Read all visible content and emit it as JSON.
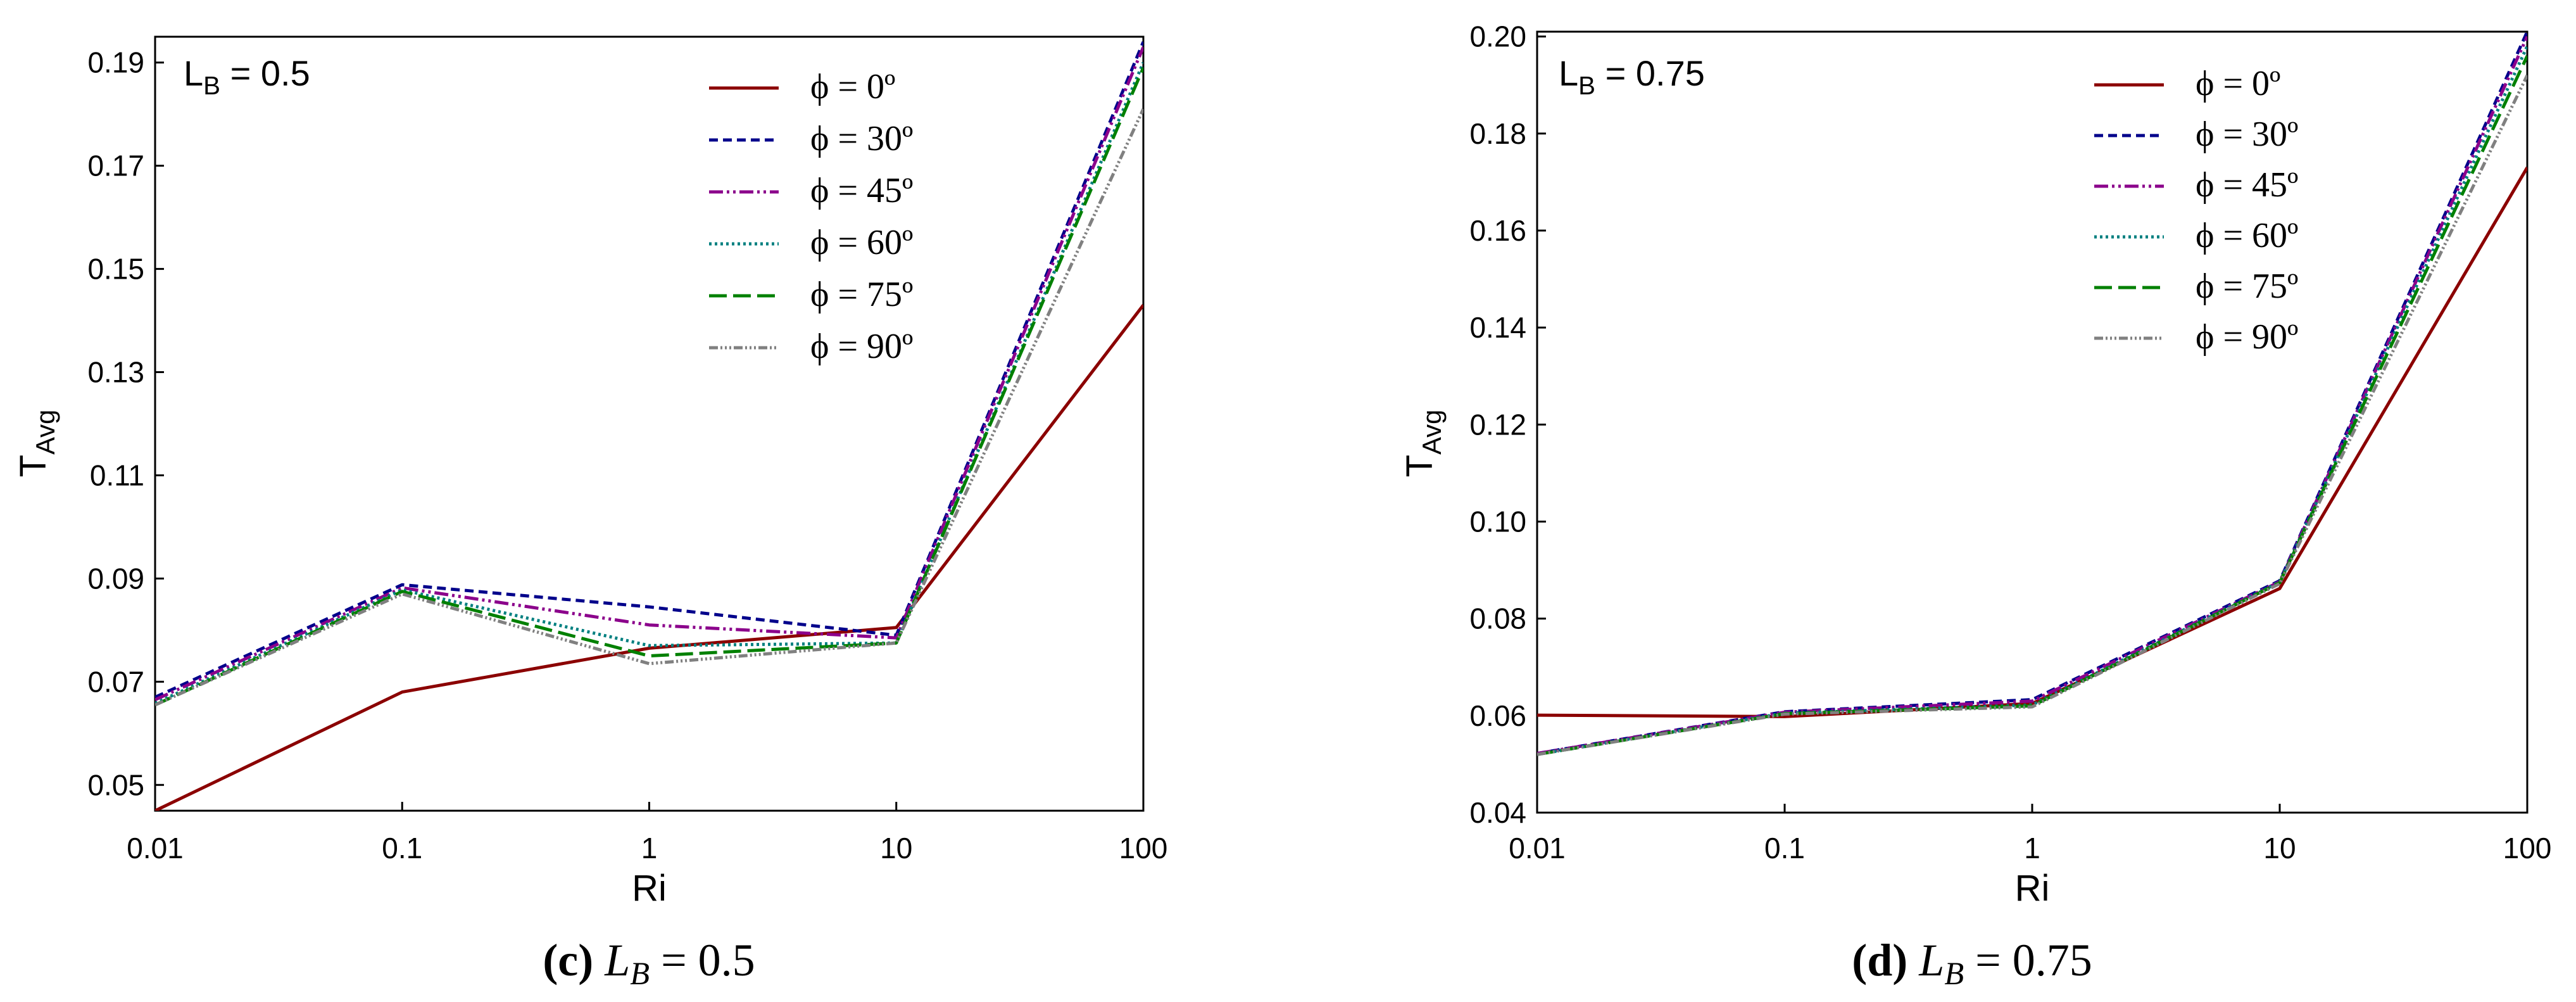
{
  "chart_data": [
    {
      "type": "line",
      "panel_annotation": {
        "main": "L",
        "sub": "B",
        "rest": " = 0.5"
      },
      "caption": {
        "tag": "(c)",
        "L": "L",
        "sub": "B",
        "rest": " = 0.5"
      },
      "xlabel": "Ri",
      "ylabel": {
        "main": "T",
        "sub": "Avg"
      },
      "xscale": "log",
      "x": [
        0.01,
        0.1,
        1,
        10,
        100
      ],
      "x_tick_labels": [
        "0.01",
        "0.1",
        "1",
        "10",
        "100"
      ],
      "xlim": [
        0.01,
        100
      ],
      "ylim": [
        0.045,
        0.195
      ],
      "y_ticks": [
        0.05,
        0.07,
        0.09,
        0.11,
        0.13,
        0.15,
        0.17,
        0.19
      ],
      "y_tick_labels": [
        "0.05",
        "0.07",
        "0.09",
        "0.11",
        "0.13",
        "0.15",
        "0.17",
        "0.19"
      ],
      "legend_position": "top-right",
      "series": [
        {
          "name": "ϕ = 0º",
          "values": [
            0.045,
            0.068,
            0.0765,
            0.0805,
            0.143
          ]
        },
        {
          "name": "ϕ = 30º",
          "values": [
            0.067,
            0.0888,
            0.0845,
            0.079,
            0.194
          ]
        },
        {
          "name": "ϕ = 45º",
          "values": [
            0.0665,
            0.0882,
            0.081,
            0.0785,
            0.193
          ]
        },
        {
          "name": "ϕ = 60º",
          "values": [
            0.0658,
            0.0878,
            0.077,
            0.0775,
            0.19
          ]
        },
        {
          "name": "ϕ = 75º",
          "values": [
            0.0655,
            0.0875,
            0.075,
            0.0775,
            0.189
          ]
        },
        {
          "name": "ϕ = 90º",
          "values": [
            0.0655,
            0.087,
            0.0735,
            0.0775,
            0.181
          ]
        }
      ]
    },
    {
      "type": "line",
      "panel_annotation": {
        "main": "L",
        "sub": "B",
        "rest": " = 0.75"
      },
      "caption": {
        "tag": "(d)",
        "L": "L",
        "sub": "B",
        "rest": " = 0.75"
      },
      "xlabel": "Ri",
      "ylabel": {
        "main": "T",
        "sub": "Avg"
      },
      "xscale": "log",
      "x": [
        0.01,
        0.1,
        1,
        10,
        100
      ],
      "x_tick_labels": [
        "0.01",
        "0.1",
        "1",
        "10",
        "100"
      ],
      "xlim": [
        0.01,
        100
      ],
      "ylim": [
        0.04,
        0.201
      ],
      "y_ticks": [
        0.04,
        0.06,
        0.08,
        0.1,
        0.12,
        0.14,
        0.16,
        0.18,
        0.2
      ],
      "y_tick_labels": [
        "0.04",
        "0.06",
        "0.08",
        "0.10",
        "0.12",
        "0.14",
        "0.16",
        "0.18",
        "0.20"
      ],
      "legend_position": "top-right",
      "series": [
        {
          "name": "ϕ = 0º",
          "values": [
            0.0601,
            0.0598,
            0.0625,
            0.0862,
            0.173
          ]
        },
        {
          "name": "ϕ = 30º",
          "values": [
            0.0522,
            0.0608,
            0.0633,
            0.0878,
            0.201
          ]
        },
        {
          "name": "ϕ = 45º",
          "values": [
            0.0522,
            0.0607,
            0.063,
            0.0876,
            0.2
          ]
        },
        {
          "name": "ϕ = 60º",
          "values": [
            0.052,
            0.0605,
            0.0622,
            0.0875,
            0.198
          ]
        },
        {
          "name": "ϕ = 75º",
          "values": [
            0.052,
            0.0604,
            0.062,
            0.0874,
            0.196
          ]
        },
        {
          "name": "ϕ = 90º",
          "values": [
            0.052,
            0.0603,
            0.0618,
            0.0872,
            0.192
          ]
        }
      ]
    }
  ],
  "series_styles": [
    {
      "color": "#8B0000",
      "dash": ""
    },
    {
      "color": "#00008B",
      "dash": "14 8"
    },
    {
      "color": "#8B008B",
      "dash": "22 6 4 6 4 6"
    },
    {
      "color": "#008080",
      "dash": "4 5"
    },
    {
      "color": "#008000",
      "dash": "28 10"
    },
    {
      "color": "#808080",
      "dash": "14 4 3 4 3 4 3 4"
    }
  ]
}
